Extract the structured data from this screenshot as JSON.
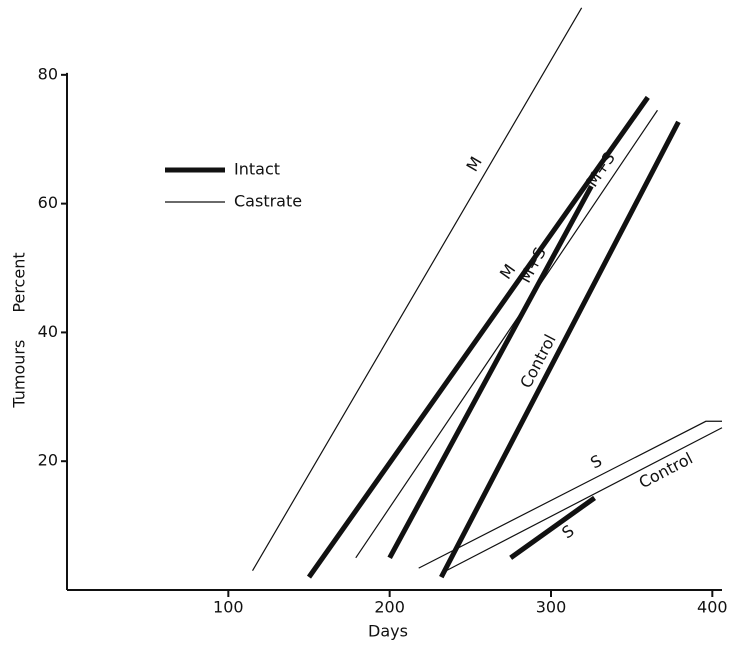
{
  "chart_data": {
    "type": "line",
    "x_label": "Days",
    "y_label": "Tumours Percent",
    "xlim": [
      0,
      406
    ],
    "xticks": [
      100,
      200,
      300,
      400
    ],
    "ylim": [
      0,
      91
    ],
    "yticks": [
      20,
      40,
      60,
      80
    ],
    "color": "#111111",
    "legend": [
      {
        "name": "Intact",
        "line_width": 5
      },
      {
        "name": "Castrate",
        "line_width": 1.2
      }
    ],
    "series": [
      {
        "name": "M",
        "line_width": 1.2,
        "x": [
          115,
          319
        ],
        "values": [
          3,
          90.4
        ]
      },
      {
        "name": "M",
        "line_width": 5,
        "x": [
          150,
          360
        ],
        "values": [
          2,
          76.5
        ]
      },
      {
        "name": "M+S",
        "line_width": 1.2,
        "x": [
          179,
          366
        ],
        "values": [
          5,
          74.5
        ]
      },
      {
        "name": "M+S",
        "line_width": 5,
        "x": [
          200,
          325
        ],
        "values": [
          5,
          62.7
        ]
      },
      {
        "name": "Control",
        "line_width": 5,
        "x": [
          232,
          379
        ],
        "values": [
          2,
          72.7
        ]
      },
      {
        "name": "S",
        "line_width": 1.2,
        "x": [
          218,
          396,
          406
        ],
        "values": [
          3.4,
          26.2,
          26.2
        ]
      },
      {
        "name": "Control",
        "line_width": 1.2,
        "x": [
          232,
          406
        ],
        "values": [
          2.6,
          25.2
        ]
      },
      {
        "name": "S",
        "line_width": 5,
        "x": [
          275,
          327
        ],
        "values": [
          5,
          14.3
        ]
      }
    ]
  }
}
